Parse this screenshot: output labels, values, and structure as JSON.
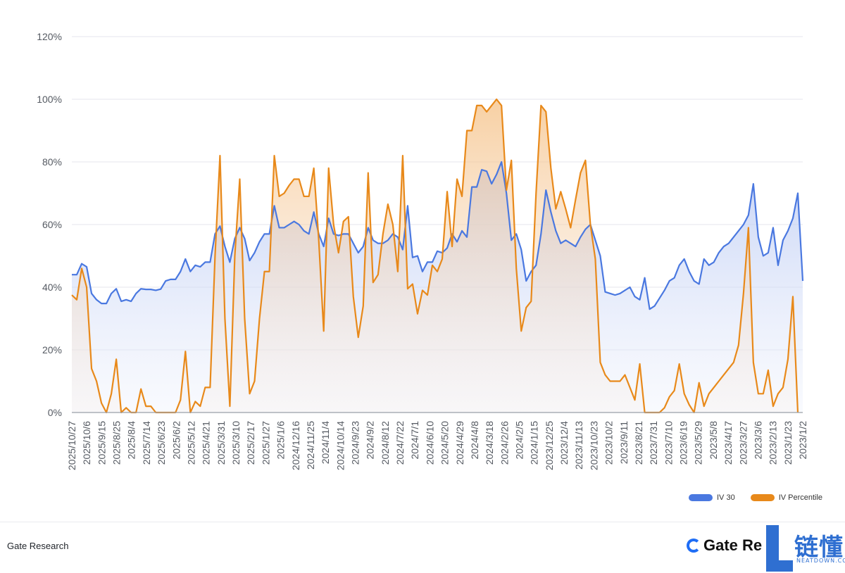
{
  "chart_data": {
    "type": "area",
    "ylim": [
      0,
      120
    ],
    "yticks": [
      "0%",
      "20%",
      "40%",
      "60%",
      "80%",
      "100%",
      "120%"
    ],
    "grid": true,
    "legend_position": "bottom-right",
    "x_tick_labels": [
      "2025/10/27",
      "2025/10/6",
      "2025/9/15",
      "2025/8/25",
      "2025/8/4",
      "2025/7/14",
      "2025/6/23",
      "2025/6/2",
      "2025/5/12",
      "2025/4/21",
      "2025/3/31",
      "2025/3/10",
      "2025/2/17",
      "2025/1/27",
      "2025/1/6",
      "2024/12/16",
      "2024/11/25",
      "2024/11/4",
      "2024/10/14",
      "2024/9/23",
      "2024/9/2",
      "2024/8/12",
      "2024/7/22",
      "2024/7/1",
      "2024/6/10",
      "2024/5/20",
      "2024/4/29",
      "2024/4/8",
      "2024/3/18",
      "2024/2/26",
      "2024/2/5",
      "2024/1/15",
      "2023/12/25",
      "2023/12/4",
      "2023/11/13",
      "2023/10/23",
      "2023/10/2",
      "2023/9/11",
      "2023/8/21",
      "2023/7/31",
      "2023/7/10",
      "2023/6/19",
      "2023/5/29",
      "2023/5/8",
      "2023/4/17",
      "2023/3/27",
      "2023/3/6",
      "2023/2/13",
      "2023/1/23",
      "2023/1/2"
    ],
    "series": [
      {
        "name": "IV 30",
        "color": "#4a78e0",
        "values": [
          44,
          44,
          47.5,
          46.5,
          38,
          36,
          34.8,
          34.8,
          38,
          39.5,
          35.5,
          36,
          35.5,
          38,
          39.5,
          39.3,
          39.3,
          39,
          39.4,
          42,
          42.5,
          42.5,
          45,
          49,
          45,
          47,
          46.5,
          48,
          48,
          57,
          59.5,
          53,
          48,
          55.5,
          59,
          55.5,
          48.5,
          51,
          54.5,
          57,
          57,
          66,
          59,
          59,
          60,
          61,
          60,
          58,
          57,
          64,
          57,
          53,
          62,
          57,
          56.5,
          57,
          57,
          54,
          51,
          53,
          59,
          55,
          54,
          54,
          55,
          57,
          56,
          52,
          66,
          49.5,
          50,
          45,
          48,
          48,
          51.5,
          51,
          52.5,
          57,
          54.5,
          58,
          56,
          72,
          72,
          77.5,
          77,
          73,
          76,
          80,
          70,
          55,
          57,
          52,
          42,
          45,
          47,
          57,
          71,
          64,
          58,
          54,
          55,
          54,
          53,
          56,
          58.5,
          60,
          55,
          50,
          38.5,
          38,
          37.5,
          38,
          39,
          40,
          37,
          36,
          43,
          33,
          34,
          36.5,
          39,
          42,
          43,
          47,
          49,
          45,
          42,
          41,
          49,
          47,
          48,
          51,
          53,
          54,
          56,
          58,
          60,
          63,
          73,
          56,
          50,
          51,
          59,
          47,
          55,
          58,
          62,
          70,
          42
        ]
      },
      {
        "name": "IV Percentile",
        "color": "#e8891a",
        "values": [
          37.5,
          36,
          46,
          40,
          14,
          10,
          3,
          0,
          6,
          17,
          0,
          1.5,
          0,
          0,
          7.5,
          2,
          2,
          0,
          0,
          0,
          0,
          0,
          4,
          19.5,
          0,
          3.5,
          2,
          8,
          8,
          50,
          82,
          30,
          2,
          50,
          74.5,
          30,
          6,
          10,
          30,
          45,
          45,
          82,
          69,
          70,
          72.5,
          74.5,
          74.5,
          69,
          69,
          78,
          55,
          26,
          78,
          60,
          51,
          61,
          62.5,
          37,
          24,
          34,
          76.5,
          41.5,
          44,
          57,
          66.5,
          60,
          45,
          82,
          39.5,
          41,
          31.5,
          39,
          37.5,
          47,
          45,
          49,
          70.5,
          53,
          74.5,
          69,
          90,
          90,
          98,
          98,
          96,
          98,
          100,
          98,
          71,
          80.5,
          46,
          26,
          33.5,
          35.5,
          70,
          98,
          96,
          78,
          65,
          70.5,
          65,
          59,
          68,
          76.5,
          80.5,
          60,
          49,
          16,
          12,
          10,
          10,
          10,
          12,
          8,
          4,
          15.5,
          0,
          0,
          0,
          0,
          1.5,
          5,
          7,
          15.5,
          6,
          2.5,
          0,
          9.5,
          2,
          6,
          8,
          10,
          12,
          14,
          16,
          21.5,
          38,
          59,
          16,
          6,
          6,
          13.5,
          2,
          6,
          8,
          17,
          37,
          0
        ]
      }
    ]
  },
  "footer": {
    "source": "Gate Research",
    "brand": "Gate Re"
  },
  "watermark": {
    "chars": "链懂",
    "sub": "NEATDOWN.COM"
  }
}
